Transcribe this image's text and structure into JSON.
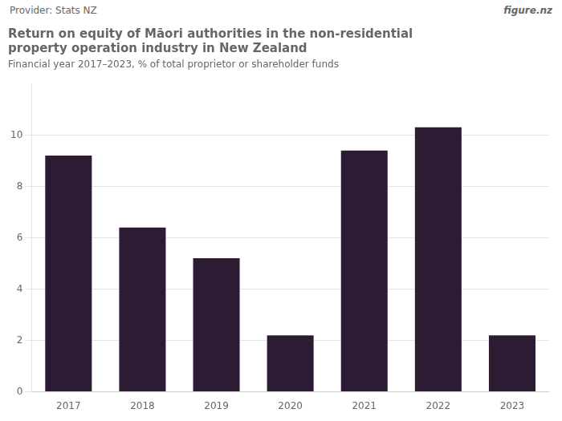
{
  "chart_data": {
    "type": "bar",
    "title": [
      "Return on equity of Māori authorities in the non-residential",
      "property operation industry in New Zealand"
    ],
    "subtitle": "Financial year 2017–2023, % of total proprietor or shareholder funds",
    "annotations": [
      "Provider: Stats NZ",
      "figure.nz"
    ],
    "categories": [
      "2017",
      "2018",
      "2019",
      "2020",
      "2021",
      "2022",
      "2023"
    ],
    "values": [
      9.2,
      6.4,
      5.2,
      2.2,
      9.4,
      10.3,
      2.2
    ],
    "color": "#2d1b33",
    "ylim": [
      0,
      12
    ],
    "yticks": [
      0,
      2,
      4,
      6,
      8,
      10
    ],
    "grid": true
  }
}
